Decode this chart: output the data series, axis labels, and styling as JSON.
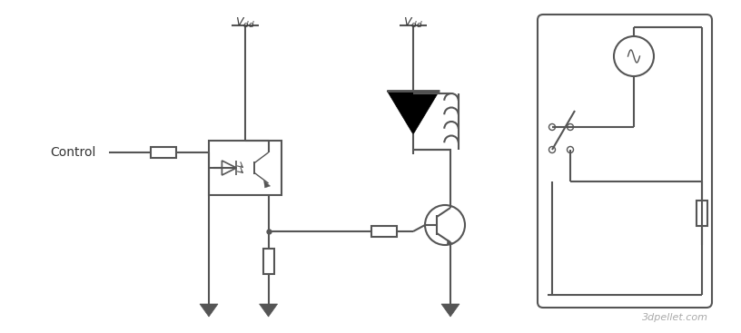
{
  "bg_color": "#ffffff",
  "line_color": "#555555",
  "line_width": 1.5,
  "fig_width": 8.16,
  "fig_height": 3.67,
  "watermark": "3dpellet.com"
}
